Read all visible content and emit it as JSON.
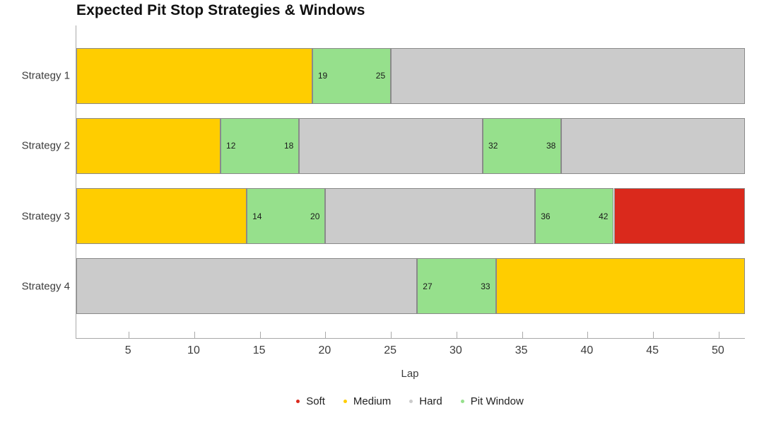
{
  "title": "Expected Pit Stop Strategies & Windows",
  "chart_data": {
    "type": "bar",
    "subtype": "horizontal-stacked-stint-timeline",
    "title": "Expected Pit Stop Strategies & Windows",
    "xlabel": "Lap",
    "xlim": [
      1,
      52
    ],
    "xticks": [
      5,
      10,
      15,
      20,
      25,
      30,
      35,
      40,
      45,
      50
    ],
    "grid": false,
    "legend_position": "bottom-center",
    "categories": [
      "Strategy 1",
      "Strategy 2",
      "Strategy 3",
      "Strategy 4"
    ],
    "legend": [
      {
        "label": "Soft",
        "color": "#DA291C"
      },
      {
        "label": "Medium",
        "color": "#FFCD00"
      },
      {
        "label": "Hard",
        "color": "#CBCBCB"
      },
      {
        "label": "Pit Window",
        "color": "#96E08C"
      }
    ],
    "colors": {
      "Soft": "#DA291C",
      "Medium": "#FFCD00",
      "Hard": "#CBCBCB",
      "Pit Window": "#96E08C"
    },
    "axis_color": "#A9A9A9",
    "segment_border_color": "#8A8A8A",
    "rows": [
      {
        "label": "Strategy 1",
        "segments": [
          {
            "type": "Medium",
            "start": 1,
            "end": 19
          },
          {
            "type": "Pit Window",
            "start": 19,
            "end": 25,
            "labels": [
              "19",
              "25"
            ]
          },
          {
            "type": "Hard",
            "start": 25,
            "end": 52
          }
        ]
      },
      {
        "label": "Strategy 2",
        "segments": [
          {
            "type": "Medium",
            "start": 1,
            "end": 12
          },
          {
            "type": "Pit Window",
            "start": 12,
            "end": 18,
            "labels": [
              "12",
              "18"
            ]
          },
          {
            "type": "Hard",
            "start": 18,
            "end": 32
          },
          {
            "type": "Pit Window",
            "start": 32,
            "end": 38,
            "labels": [
              "32",
              "38"
            ]
          },
          {
            "type": "Hard",
            "start": 38,
            "end": 52
          }
        ]
      },
      {
        "label": "Strategy 3",
        "segments": [
          {
            "type": "Medium",
            "start": 1,
            "end": 14
          },
          {
            "type": "Pit Window",
            "start": 14,
            "end": 20,
            "labels": [
              "14",
              "20"
            ]
          },
          {
            "type": "Hard",
            "start": 20,
            "end": 36
          },
          {
            "type": "Pit Window",
            "start": 36,
            "end": 42,
            "labels": [
              "36",
              "42"
            ]
          },
          {
            "type": "Soft",
            "start": 42,
            "end": 52
          }
        ]
      },
      {
        "label": "Strategy 4",
        "segments": [
          {
            "type": "Hard",
            "start": 1,
            "end": 27
          },
          {
            "type": "Pit Window",
            "start": 27,
            "end": 33,
            "labels": [
              "27",
              "33"
            ]
          },
          {
            "type": "Medium",
            "start": 33,
            "end": 52
          }
        ]
      }
    ]
  }
}
